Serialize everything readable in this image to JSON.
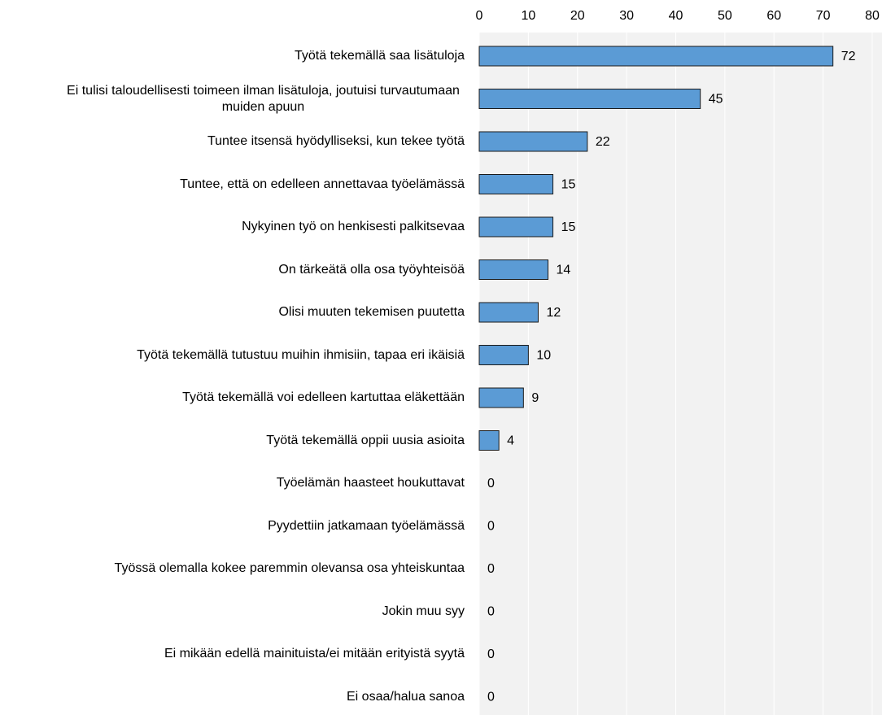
{
  "chart_data": {
    "type": "bar",
    "orientation": "horizontal",
    "categories": [
      "Työtä tekemällä saa lisätuloja",
      "Ei tulisi taloudellisesti toimeen ilman lisätuloja, joutuisi turvautumaan muiden apuun",
      "Tuntee itsensä hyödylliseksi, kun tekee työtä",
      "Tuntee, että on edelleen annettavaa työelämässä",
      "Nykyinen työ on henkisesti palkitsevaa",
      "On tärkeätä olla osa työyhteisöä",
      "Olisi muuten tekemisen puutetta",
      "Työtä tekemällä tutustuu muihin ihmisiin, tapaa eri ikäisiä",
      "Työtä tekemällä voi edelleen kartuttaa eläkettään",
      "Työtä tekemällä oppii uusia asioita",
      "Työelämän haasteet houkuttavat",
      "Pyydettiin jatkamaan työelämässä",
      "Työssä olemalla kokee paremmin olevansa osa yhteiskuntaa",
      "Jokin muu syy",
      "Ei mikään edellä mainituista/ei mitään erityistä syytä",
      "Ei osaa/halua sanoa"
    ],
    "values": [
      72,
      45,
      22,
      15,
      15,
      14,
      12,
      10,
      9,
      4,
      0,
      0,
      0,
      0,
      0,
      0
    ],
    "color": "#5b9bd5",
    "xlim": [
      0,
      80
    ],
    "xticks": [
      0,
      10,
      20,
      30,
      40,
      50,
      60,
      70,
      80
    ],
    "grid": true
  }
}
